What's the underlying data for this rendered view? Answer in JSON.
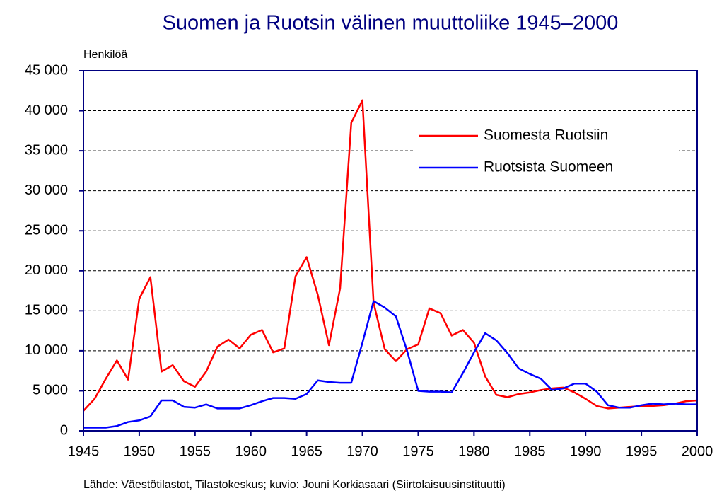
{
  "chart_data": {
    "type": "line",
    "title": "Suomen ja Ruotsin välinen muuttoliike 1945–2000",
    "y_label": "Henkilöä",
    "source": "Lähde: Väestötilastot, Tilastokeskus; kuvio: Jouni Korkiasaari (Siirtolaisuusinstituutti)",
    "x": [
      1945,
      1946,
      1947,
      1948,
      1949,
      1950,
      1951,
      1952,
      1953,
      1954,
      1955,
      1956,
      1957,
      1958,
      1959,
      1960,
      1961,
      1962,
      1963,
      1964,
      1965,
      1966,
      1967,
      1968,
      1969,
      1970,
      1971,
      1972,
      1973,
      1974,
      1975,
      1976,
      1977,
      1978,
      1979,
      1980,
      1981,
      1982,
      1983,
      1984,
      1985,
      1986,
      1987,
      1988,
      1989,
      1990,
      1991,
      1992,
      1993,
      1994,
      1995,
      1996,
      1997,
      1998,
      1999,
      2000
    ],
    "series": [
      {
        "name": "Suomesta Ruotsiin",
        "color": "#ff0000",
        "values": [
          2500,
          4000,
          6500,
          8800,
          6400,
          16500,
          19200,
          7400,
          8200,
          6200,
          5500,
          7400,
          10500,
          11400,
          10300,
          12000,
          12600,
          9800,
          10300,
          19300,
          21700,
          17000,
          10700,
          17800,
          38500,
          41300,
          16000,
          10200,
          8700,
          10200,
          10800,
          15300,
          14700,
          11900,
          12600,
          11000,
          6800,
          4500,
          4200,
          4600,
          4800,
          5100,
          5300,
          5400,
          4800,
          4000,
          3100,
          2800,
          2900,
          3000,
          3100,
          3100,
          3200,
          3400,
          3700,
          3800
        ]
      },
      {
        "name": "Ruotsista Suomeen",
        "color": "#0000ff",
        "values": [
          400,
          400,
          400,
          600,
          1100,
          1300,
          1800,
          3800,
          3800,
          3000,
          2900,
          3300,
          2800,
          2800,
          2800,
          3200,
          3700,
          4100,
          4100,
          4000,
          4600,
          6300,
          6100,
          6000,
          6000,
          11000,
          16200,
          15400,
          14300,
          10000,
          5000,
          4900,
          4900,
          4800,
          7200,
          9800,
          12200,
          11300,
          9700,
          7800,
          7100,
          6500,
          5100,
          5300,
          5900,
          5900,
          4900,
          3200,
          2900,
          2900,
          3200,
          3400,
          3300,
          3400,
          3300,
          3300
        ]
      }
    ],
    "xlim": [
      1945,
      2000
    ],
    "xticks": [
      1945,
      1950,
      1955,
      1960,
      1965,
      1970,
      1975,
      1980,
      1985,
      1990,
      1995,
      2000
    ],
    "ylim": [
      0,
      45000
    ],
    "yticks": [
      0,
      {
        "value": 5000,
        "label": "5 000"
      },
      {
        "value": 10000,
        "label": "10 000"
      },
      {
        "value": 15000,
        "label": "15 000"
      },
      {
        "value": 20000,
        "label": "20 000"
      },
      {
        "value": 25000,
        "label": "25 000"
      },
      {
        "value": 30000,
        "label": "30 000"
      },
      {
        "value": 35000,
        "label": "35 000"
      },
      {
        "value": 40000,
        "label": "40 000"
      },
      {
        "value": 45000,
        "label": "45 000"
      }
    ],
    "grid": true,
    "legend": "upper right"
  }
}
